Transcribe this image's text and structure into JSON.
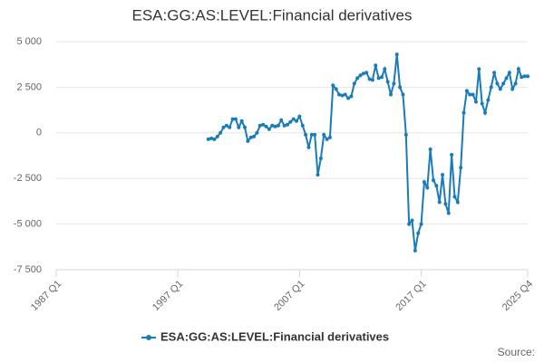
{
  "chart_data": {
    "type": "line",
    "title": "ESA:GG:AS:LEVEL:Financial derivatives",
    "source": "Source:",
    "categories": [
      "1987 Q1",
      null,
      null,
      null,
      null,
      null,
      null,
      null,
      null,
      null,
      null,
      null,
      null,
      null,
      null,
      null,
      null,
      null,
      null,
      null,
      null,
      null,
      null,
      null,
      null,
      null,
      null,
      null,
      null,
      null,
      null,
      null,
      null,
      null,
      null,
      null,
      null,
      null,
      null,
      null,
      "1997 Q1",
      null,
      null,
      null,
      null,
      null,
      null,
      null,
      null,
      null,
      null,
      null,
      null,
      null,
      null,
      null,
      null,
      null,
      null,
      null,
      null,
      null,
      null,
      null,
      null,
      null,
      null,
      null,
      null,
      null,
      null,
      null,
      null,
      null,
      null,
      null,
      null,
      null,
      null,
      null,
      "2007 Q1",
      null,
      null,
      null,
      null,
      null,
      null,
      null,
      null,
      null,
      null,
      null,
      null,
      null,
      null,
      null,
      null,
      null,
      null,
      null,
      null,
      null,
      null,
      null,
      null,
      null,
      null,
      null,
      null,
      null,
      null,
      null,
      null,
      null,
      null,
      null,
      null,
      null,
      null,
      null,
      "2017 Q1",
      null,
      null,
      null,
      null,
      null,
      null,
      null,
      null,
      null,
      null,
      null,
      null,
      null,
      null,
      null,
      null,
      null,
      null,
      null,
      null,
      null,
      null,
      null,
      null,
      null,
      null,
      null,
      null,
      null,
      null,
      null,
      null,
      null,
      null,
      "2025 Q4"
    ],
    "series": [
      {
        "name": "ESA:GG:AS:LEVEL:Financial derivatives",
        "color": "#1a7bb9",
        "values": [
          null,
          null,
          null,
          null,
          null,
          null,
          null,
          null,
          null,
          null,
          null,
          null,
          null,
          null,
          null,
          null,
          null,
          null,
          null,
          null,
          null,
          null,
          null,
          null,
          null,
          null,
          null,
          null,
          null,
          null,
          null,
          null,
          null,
          null,
          null,
          null,
          null,
          null,
          null,
          null,
          null,
          null,
          null,
          null,
          null,
          null,
          null,
          null,
          null,
          null,
          -350,
          -300,
          -350,
          -200,
          0,
          300,
          400,
          300,
          750,
          750,
          300,
          650,
          300,
          -450,
          -250,
          -200,
          0,
          400,
          450,
          350,
          200,
          400,
          350,
          400,
          700,
          400,
          450,
          600,
          750,
          650,
          900,
          400,
          -100,
          -800,
          -100,
          -100,
          -2300,
          -1400,
          -100,
          -350,
          -250,
          2600,
          2400,
          2100,
          2050,
          2100,
          1900,
          2000,
          2700,
          3000,
          3150,
          3250,
          3300,
          2950,
          2900,
          3700,
          3000,
          3050,
          3500,
          2800,
          2100,
          2700,
          4300,
          2500,
          2100,
          -100,
          -5000,
          -4800,
          -6450,
          -5500,
          -5000,
          -2700,
          -3000,
          -900,
          -2600,
          -2900,
          -3800,
          -2300,
          -3900,
          -4400,
          -1200,
          -3500,
          -3800,
          -1900,
          1100,
          2300,
          2100,
          2100,
          1700,
          3500,
          1600,
          1100,
          1800,
          2500,
          3300,
          2700,
          2400,
          2700,
          3000,
          3300,
          2400,
          2700,
          3500,
          3050,
          3100,
          3100
        ]
      }
    ],
    "ylim": [
      -7500,
      5000
    ],
    "yticks": [
      {
        "value": -7500,
        "label": "-7 500"
      },
      {
        "value": -5000,
        "label": "-5 000"
      },
      {
        "value": -2500,
        "label": "-2 500"
      },
      0,
      {
        "value": 2500,
        "label": "2 500"
      },
      {
        "value": 5000,
        "label": "5 000"
      }
    ],
    "grid": true
  }
}
